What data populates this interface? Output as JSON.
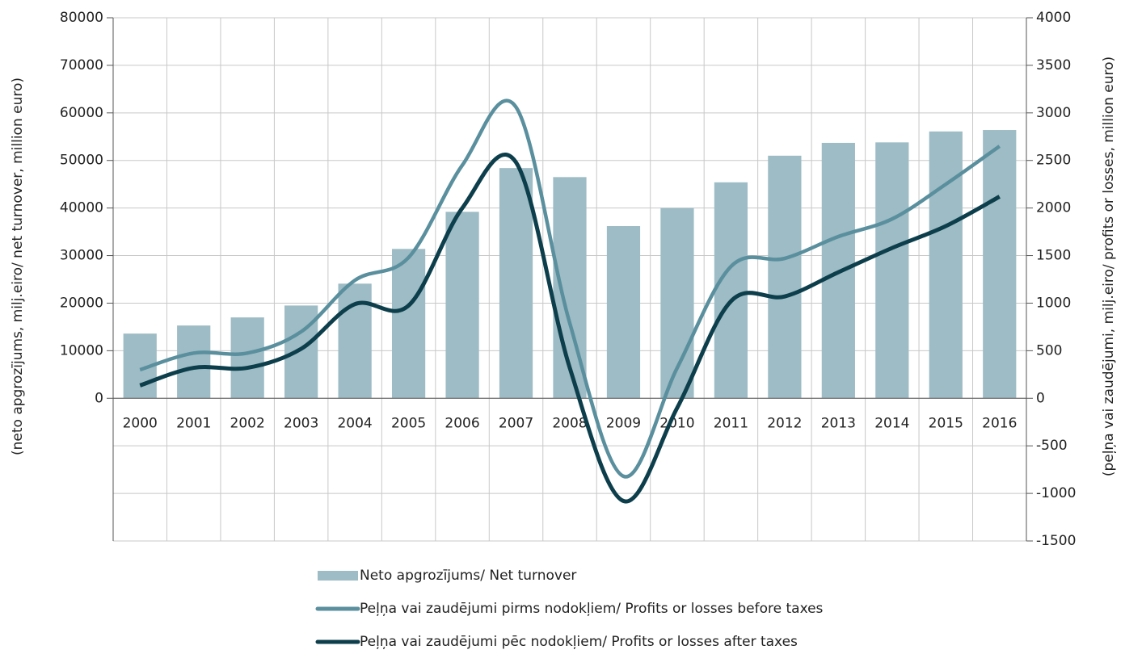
{
  "chart_data": {
    "type": "bar-line",
    "categories": [
      "2000",
      "2001",
      "2002",
      "2003",
      "2004",
      "2005",
      "2006",
      "2007",
      "2008",
      "2009",
      "2010",
      "2011",
      "2012",
      "2013",
      "2014",
      "2015",
      "2016"
    ],
    "series": [
      {
        "name": "Neto apgrozījums/ Net turnover",
        "color": "#9ebcc5",
        "type": "bar",
        "axis": "y",
        "values": [
          13600,
          15300,
          17000,
          19500,
          24100,
          31400,
          39200,
          48400,
          46500,
          36200,
          40000,
          45400,
          51000,
          53700,
          53800,
          56100,
          56400
        ]
      },
      {
        "name": "Peļņa vai zaudējumi pirms nodokļiem/ Profits or losses before taxes",
        "color": "#5a8f9e",
        "type": "line",
        "axis": "y2",
        "values": [
          300,
          475,
          475,
          700,
          1240,
          1480,
          2450,
          3060,
          790,
          -820,
          320,
          1385,
          1470,
          1700,
          1885,
          2250,
          2650
        ]
      },
      {
        "name": "Peļņa vai zaudējumi pēc nodokļiem/ Profits or losses after taxes",
        "color": "#0d3e4b",
        "type": "line",
        "axis": "y2",
        "values": [
          135,
          320,
          320,
          520,
          990,
          975,
          2000,
          2480,
          320,
          -1080,
          -100,
          1020,
          1070,
          1325,
          1580,
          1810,
          2120
        ]
      }
    ],
    "ylabel": "(neto apgrozījums, milj.eiro/ net turnover, million euro)",
    "y2label": "(peļņa vai zaudējumi, milj.eiro/ profits or losses, million euro)",
    "ylim": [
      -30000,
      80000
    ],
    "yticks": [
      0,
      10000,
      20000,
      30000,
      40000,
      50000,
      60000,
      70000,
      80000
    ],
    "y2lim": [
      -1500,
      4000
    ],
    "y2ticks": [
      -1500,
      -1000,
      -500,
      0,
      500,
      1000,
      1500,
      2000,
      2500,
      3000,
      3500,
      4000
    ],
    "grid": true
  }
}
